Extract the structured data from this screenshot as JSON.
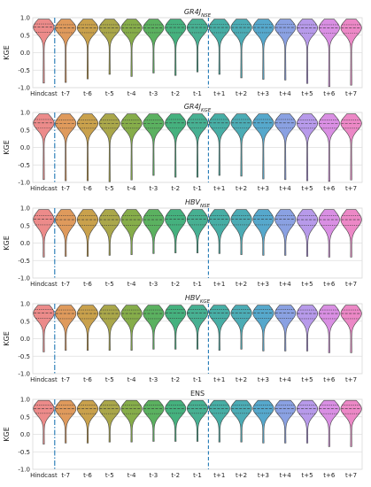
{
  "chart_data": [
    {
      "type": "violin",
      "title_main": "GR4J",
      "title_sub": "NSE",
      "ylabel": "KGE",
      "ylim": [
        -1.0,
        1.0
      ],
      "yticks": [
        -1.0,
        -0.5,
        0.0,
        0.5,
        1.0
      ],
      "ytick_labels": [
        "-1.0",
        "-0.5",
        "0.0",
        "0.5",
        "1.0"
      ],
      "grid": true,
      "categories": [
        "Hindcast",
        "t-7",
        "t-6",
        "t-5",
        "t-4",
        "t-3",
        "t-2",
        "t-1",
        "t+1",
        "t+2",
        "t+3",
        "t+4",
        "t+5",
        "t+6",
        "t+7"
      ],
      "median": [
        0.73,
        0.71,
        0.71,
        0.71,
        0.71,
        0.71,
        0.72,
        0.72,
        0.72,
        0.72,
        0.72,
        0.72,
        0.71,
        0.71,
        0.71
      ],
      "q1": [
        0.58,
        0.57,
        0.57,
        0.57,
        0.57,
        0.57,
        0.57,
        0.57,
        0.57,
        0.57,
        0.57,
        0.57,
        0.56,
        0.56,
        0.56
      ],
      "q3": [
        0.82,
        0.8,
        0.8,
        0.8,
        0.8,
        0.8,
        0.81,
        0.81,
        0.81,
        0.81,
        0.81,
        0.81,
        0.8,
        0.8,
        0.8
      ],
      "min": [
        -0.87,
        -0.85,
        -0.75,
        -0.62,
        -0.68,
        -0.58,
        -0.65,
        -0.55,
        -0.62,
        -0.72,
        -0.76,
        -0.78,
        -0.88,
        -0.97,
        -0.93
      ],
      "max": [
        0.96,
        0.96,
        0.96,
        0.96,
        0.96,
        0.96,
        0.96,
        0.96,
        0.96,
        0.96,
        0.96,
        0.96,
        0.96,
        0.96,
        0.96
      ]
    },
    {
      "type": "violin",
      "title_main": "GR4J",
      "title_sub": "KGE",
      "ylabel": "KGE",
      "ylim": [
        -1.0,
        1.0
      ],
      "yticks": [
        -1.0,
        -0.5,
        0.0,
        0.5,
        1.0
      ],
      "ytick_labels": [
        "-1.0",
        "-0.5",
        "0.0",
        "0.5",
        "1.0"
      ],
      "grid": true,
      "categories": [
        "Hindcast",
        "t-7",
        "t-6",
        "t-5",
        "t-4",
        "t-3",
        "t-2",
        "t-1",
        "t+1",
        "t+2",
        "t+3",
        "t+4",
        "t+5",
        "t+6",
        "t+7"
      ],
      "median": [
        0.7,
        0.69,
        0.69,
        0.69,
        0.69,
        0.69,
        0.7,
        0.7,
        0.7,
        0.7,
        0.7,
        0.7,
        0.69,
        0.69,
        0.69
      ],
      "q1": [
        0.56,
        0.55,
        0.55,
        0.55,
        0.55,
        0.55,
        0.56,
        0.56,
        0.56,
        0.56,
        0.56,
        0.56,
        0.55,
        0.55,
        0.55
      ],
      "q3": [
        0.8,
        0.79,
        0.79,
        0.79,
        0.79,
        0.79,
        0.8,
        0.8,
        0.8,
        0.8,
        0.8,
        0.8,
        0.79,
        0.79,
        0.79
      ],
      "min": [
        -0.92,
        -0.95,
        -0.95,
        -0.98,
        -0.93,
        -0.8,
        -0.85,
        -0.85,
        -0.8,
        -0.82,
        -0.9,
        -0.92,
        -0.95,
        -0.97,
        -0.93
      ],
      "max": [
        0.96,
        0.96,
        0.96,
        0.96,
        0.96,
        0.96,
        0.96,
        0.96,
        0.96,
        0.96,
        0.96,
        0.96,
        0.96,
        0.96,
        0.96
      ]
    },
    {
      "type": "violin",
      "title_main": "HBV",
      "title_sub": "NSE",
      "ylabel": "KGE",
      "ylim": [
        -1.0,
        1.0
      ],
      "yticks": [
        -1.0,
        -0.5,
        0.0,
        0.5,
        1.0
      ],
      "ytick_labels": [
        "-1.0",
        "-0.5",
        "0.0",
        "0.5",
        "1.0"
      ],
      "grid": true,
      "categories": [
        "Hindcast",
        "t-7",
        "t-6",
        "t-5",
        "t-4",
        "t-3",
        "t-2",
        "t-1",
        "t+1",
        "t+2",
        "t+3",
        "t+4",
        "t+5",
        "t+6",
        "t+7"
      ],
      "median": [
        0.68,
        0.67,
        0.67,
        0.67,
        0.67,
        0.67,
        0.68,
        0.68,
        0.68,
        0.68,
        0.68,
        0.68,
        0.67,
        0.67,
        0.67
      ],
      "q1": [
        0.52,
        0.51,
        0.51,
        0.51,
        0.51,
        0.51,
        0.52,
        0.52,
        0.52,
        0.52,
        0.52,
        0.52,
        0.51,
        0.51,
        0.51
      ],
      "q3": [
        0.79,
        0.78,
        0.78,
        0.78,
        0.78,
        0.78,
        0.79,
        0.79,
        0.79,
        0.79,
        0.79,
        0.79,
        0.78,
        0.78,
        0.78
      ],
      "min": [
        -0.4,
        -0.38,
        -0.38,
        -0.35,
        -0.33,
        -0.3,
        -0.28,
        -0.28,
        -0.3,
        -0.33,
        -0.35,
        -0.35,
        -0.38,
        -0.4,
        -0.4
      ],
      "max": [
        0.96,
        0.96,
        0.96,
        0.96,
        0.96,
        0.96,
        0.96,
        0.96,
        0.96,
        0.96,
        0.96,
        0.96,
        0.96,
        0.96,
        0.96
      ]
    },
    {
      "type": "violin",
      "title_main": "HBV",
      "title_sub": "KGE",
      "ylabel": "KGE",
      "ylim": [
        -1.0,
        1.0
      ],
      "yticks": [
        -1.0,
        -0.5,
        0.0,
        0.5,
        1.0
      ],
      "ytick_labels": [
        "-1.0",
        "-0.5",
        "0.0",
        "0.5",
        "1.0"
      ],
      "grid": true,
      "categories": [
        "Hindcast",
        "t-7",
        "t-6",
        "t-5",
        "t-4",
        "t-3",
        "t-2",
        "t-1",
        "t+1",
        "t+2",
        "t+3",
        "t+4",
        "t+5",
        "t+6",
        "t+7"
      ],
      "median": [
        0.73,
        0.72,
        0.72,
        0.72,
        0.72,
        0.72,
        0.73,
        0.73,
        0.73,
        0.73,
        0.73,
        0.73,
        0.72,
        0.72,
        0.72
      ],
      "q1": [
        0.58,
        0.57,
        0.57,
        0.57,
        0.57,
        0.57,
        0.58,
        0.58,
        0.58,
        0.58,
        0.58,
        0.58,
        0.57,
        0.57,
        0.57
      ],
      "q3": [
        0.83,
        0.82,
        0.82,
        0.82,
        0.82,
        0.82,
        0.83,
        0.83,
        0.83,
        0.83,
        0.83,
        0.83,
        0.82,
        0.82,
        0.82
      ],
      "min": [
        -0.38,
        -0.33,
        -0.33,
        -0.33,
        -0.33,
        -0.3,
        -0.3,
        -0.3,
        -0.33,
        -0.3,
        -0.35,
        -0.35,
        -0.35,
        -0.4,
        -0.4
      ],
      "max": [
        0.96,
        0.96,
        0.96,
        0.96,
        0.96,
        0.96,
        0.96,
        0.96,
        0.96,
        0.96,
        0.96,
        0.96,
        0.96,
        0.96,
        0.96
      ]
    },
    {
      "type": "violin",
      "title_main": "ENS",
      "title_sub": "",
      "ylabel": "KGE",
      "ylim": [
        -1.0,
        1.0
      ],
      "yticks": [
        -1.0,
        -0.5,
        0.0,
        0.5,
        1.0
      ],
      "ytick_labels": [
        "-1.0",
        "-0.5",
        "0.0",
        "0.5",
        "1.0"
      ],
      "grid": true,
      "categories": [
        "Hindcast",
        "t-7",
        "t-6",
        "t-5",
        "t-4",
        "t-3",
        "t-2",
        "t-1",
        "t+1",
        "t+2",
        "t+3",
        "t+4",
        "t+5",
        "t+6",
        "t+7"
      ],
      "median": [
        0.74,
        0.73,
        0.73,
        0.73,
        0.73,
        0.73,
        0.74,
        0.74,
        0.74,
        0.74,
        0.74,
        0.74,
        0.73,
        0.73,
        0.73
      ],
      "q1": [
        0.6,
        0.59,
        0.59,
        0.59,
        0.59,
        0.59,
        0.6,
        0.6,
        0.6,
        0.6,
        0.6,
        0.6,
        0.59,
        0.59,
        0.59
      ],
      "q3": [
        0.84,
        0.83,
        0.83,
        0.83,
        0.83,
        0.83,
        0.84,
        0.84,
        0.84,
        0.84,
        0.84,
        0.84,
        0.83,
        0.83,
        0.83
      ],
      "min": [
        -0.28,
        -0.25,
        -0.25,
        -0.22,
        -0.22,
        -0.2,
        -0.2,
        -0.2,
        -0.22,
        -0.22,
        -0.25,
        -0.25,
        -0.25,
        -0.35,
        -0.35
      ],
      "max": [
        0.97,
        0.97,
        0.97,
        0.97,
        0.97,
        0.97,
        0.97,
        0.97,
        0.97,
        0.97,
        0.97,
        0.97,
        0.97,
        0.97,
        0.97
      ]
    }
  ],
  "colors": [
    "#ec8b8a",
    "#df9a5c",
    "#c9a14c",
    "#aaa74a",
    "#86ad4a",
    "#5bb160",
    "#45b17e",
    "#47b092",
    "#47aea5",
    "#4cacb5",
    "#56a8cc",
    "#8aa1e2",
    "#b79aea",
    "#d98fe3",
    "#ec88c6"
  ],
  "vline_left_color": "#1f77b4",
  "vline_right_color": "#1f77b4"
}
